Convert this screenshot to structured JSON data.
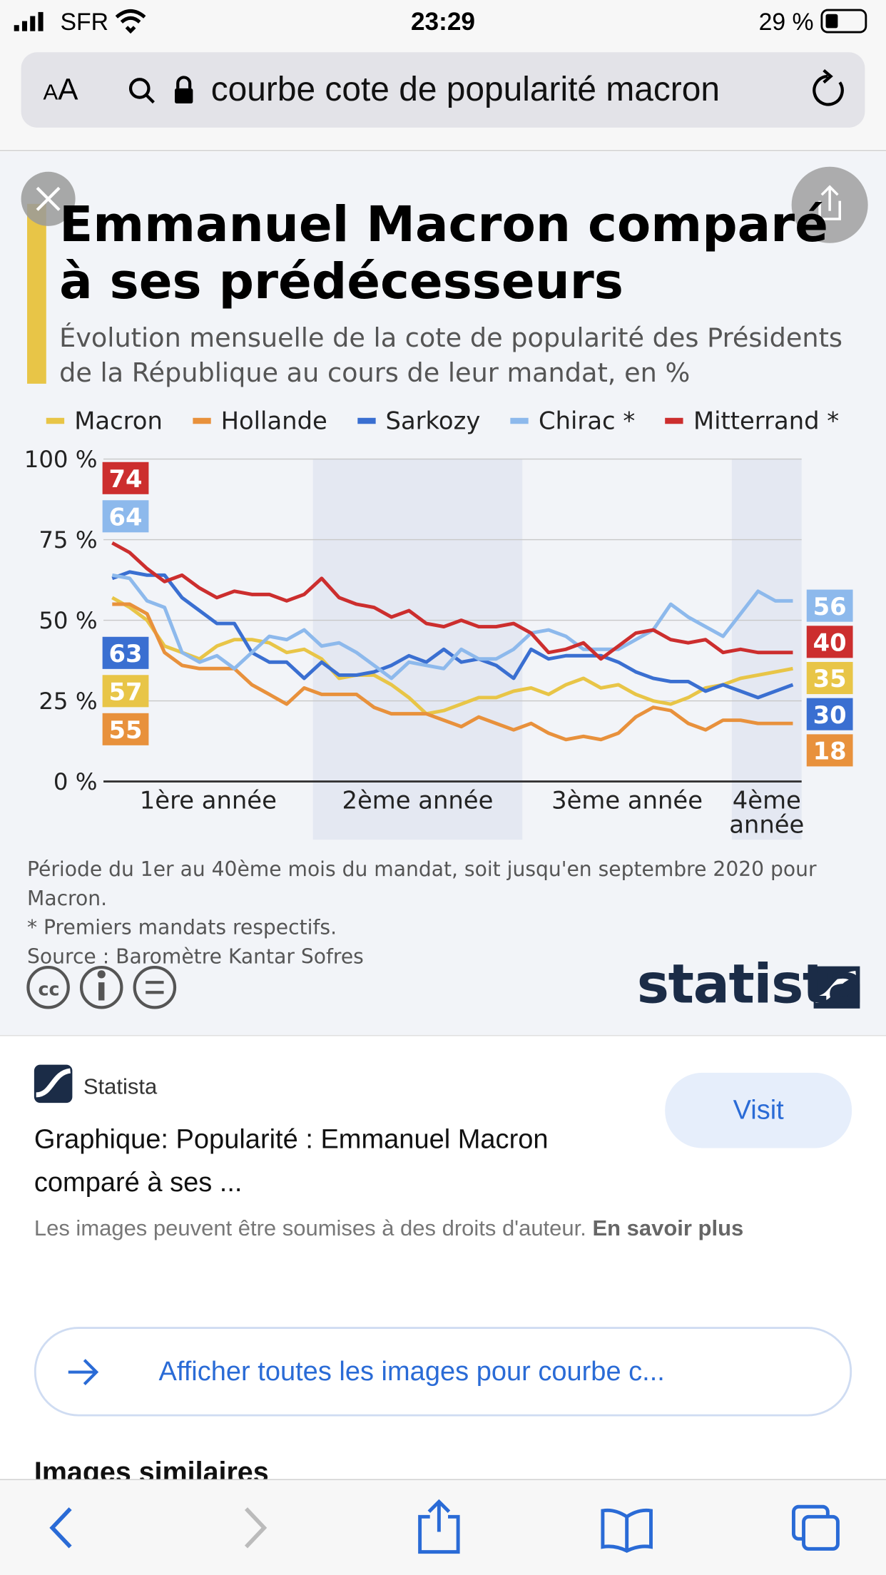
{
  "status_bar": {
    "carrier": "SFR",
    "time": "23:29",
    "battery": "29 %"
  },
  "url_bar": {
    "text_size": "AA",
    "query": "courbe cote de popularité macron"
  },
  "chart_data": {
    "type": "line",
    "title": "Emmanuel Macron comparé à ses prédécesseurs",
    "subtitle": "Évolution mensuelle de la cote de popularité des Présidents de la République au cours de leur mandat, en %",
    "x": [
      1,
      2,
      3,
      4,
      5,
      6,
      7,
      8,
      9,
      10,
      11,
      12,
      13,
      14,
      15,
      16,
      17,
      18,
      19,
      20,
      21,
      22,
      23,
      24,
      25,
      26,
      27,
      28,
      29,
      30,
      31,
      32,
      33,
      34,
      35,
      36,
      37,
      38,
      39,
      40
    ],
    "xlim": [
      0.5,
      40.5
    ],
    "periods": [
      "1ère année",
      "2ème année",
      "3ème année",
      "4ème année"
    ],
    "ylim": [
      0,
      100
    ],
    "yticks": [
      {
        "value": 0,
        "label": "0 %"
      },
      {
        "value": 25,
        "label": "25 %"
      },
      {
        "value": 50,
        "label": "50 %"
      },
      {
        "value": 75,
        "label": "75 %"
      },
      {
        "value": 100,
        "label": "100 %"
      }
    ],
    "grid": true,
    "series": [
      {
        "name": "Macron",
        "color": "#e8c547",
        "values": [
          57,
          54,
          50,
          42,
          40,
          38,
          42,
          44,
          44,
          43,
          40,
          41,
          38,
          32,
          33,
          33,
          30,
          26,
          21,
          22,
          24,
          26,
          26,
          28,
          29,
          27,
          30,
          32,
          29,
          30,
          27,
          25,
          24,
          26,
          29,
          30,
          32,
          33,
          34,
          35
        ]
      },
      {
        "name": "Hollande",
        "color": "#e8913c",
        "values": [
          55,
          55,
          52,
          40,
          36,
          35,
          35,
          35,
          30,
          27,
          24,
          29,
          27,
          27,
          27,
          23,
          21,
          21,
          21,
          19,
          17,
          20,
          18,
          16,
          18,
          15,
          13,
          14,
          13,
          15,
          20,
          23,
          22,
          18,
          16,
          19,
          19,
          18,
          18,
          18
        ]
      },
      {
        "name": "Sarkozy",
        "color": "#3a6fd1",
        "values": [
          63,
          65,
          64,
          64,
          57,
          53,
          49,
          49,
          40,
          37,
          37,
          32,
          37,
          33,
          33,
          34,
          36,
          39,
          37,
          41,
          37,
          38,
          36,
          32,
          41,
          38,
          39,
          39,
          39,
          37,
          34,
          32,
          31,
          31,
          28,
          30,
          28,
          26,
          28,
          30
        ]
      },
      {
        "name": "Chirac *",
        "color": "#8db9ec",
        "values": [
          64,
          63,
          56,
          54,
          40,
          37,
          39,
          35,
          40,
          45,
          44,
          47,
          42,
          43,
          40,
          36,
          32,
          37,
          36,
          35,
          41,
          38,
          38,
          41,
          46,
          47,
          45,
          41,
          41,
          41,
          44,
          47,
          55,
          51,
          48,
          45,
          52,
          59,
          56,
          56
        ]
      },
      {
        "name": "Mitterrand *",
        "color": "#cc2e2e",
        "values": [
          74,
          71,
          66,
          62,
          64,
          60,
          57,
          59,
          58,
          58,
          56,
          58,
          63,
          57,
          55,
          54,
          51,
          53,
          49,
          48,
          50,
          48,
          48,
          49,
          46,
          40,
          41,
          43,
          38,
          42,
          46,
          47,
          44,
          43,
          44,
          40,
          41,
          40,
          40,
          40
        ]
      }
    ],
    "notes": [
      "Période du 1er au 40ème mois du mandat, soit jusqu'en septembre 2020 pour Macron.",
      "* Premiers mandats respectifs.",
      "Source : Baromètre Kantar Sofres"
    ],
    "brand": "statista"
  },
  "result": {
    "source": "Statista",
    "title": "Graphique: Popularité : Emmanuel Macron comparé à ses ...",
    "visit": "Visit",
    "notice": "Les images peuvent être soumises à des droits d'auteur.",
    "notice_link": "En savoir plus",
    "more": "Afficher toutes les images pour courbe c...",
    "section": "Images similaires"
  }
}
